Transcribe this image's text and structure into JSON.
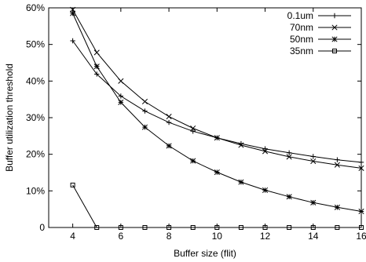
{
  "chart_data": {
    "type": "line",
    "title": "",
    "xlabel": "Buffer size (flit)",
    "ylabel": "Buffer utilization threshold",
    "xlim": [
      3,
      16
    ],
    "ylim": [
      0,
      60
    ],
    "x_ticks": [
      4,
      6,
      8,
      10,
      12,
      14,
      16
    ],
    "y_ticks": [
      0,
      10,
      20,
      30,
      40,
      50,
      60
    ],
    "y_tick_labels": [
      "0",
      "10%",
      "20%",
      "30%",
      "40%",
      "50%",
      "60%"
    ],
    "grid": false,
    "legend_position": "top-right",
    "x": [
      4,
      5,
      6,
      7,
      8,
      9,
      10,
      11,
      12,
      13,
      14,
      15,
      16
    ],
    "series": [
      {
        "name": "0.1um",
        "marker": "plus",
        "values": [
          51,
          41.9,
          35.9,
          31.8,
          28.7,
          26.3,
          24.5,
          22.9,
          21.5,
          20.4,
          19.4,
          18.5,
          17.8
        ]
      },
      {
        "name": "70nm",
        "marker": "x",
        "values": [
          59.5,
          47.8,
          40,
          34.4,
          30.3,
          27.1,
          24.5,
          22.5,
          20.8,
          19.3,
          18.1,
          17.1,
          16.2
        ]
      },
      {
        "name": "50nm",
        "marker": "star",
        "values": [
          58.5,
          44,
          34.2,
          27.4,
          22.3,
          18.2,
          15.1,
          12.4,
          10.2,
          8.4,
          6.8,
          5.5,
          4.4
        ]
      },
      {
        "name": "35nm",
        "marker": "square",
        "values": [
          11.6,
          0,
          0,
          0,
          0,
          0,
          0,
          0,
          0,
          0,
          0,
          0,
          0
        ]
      }
    ]
  }
}
